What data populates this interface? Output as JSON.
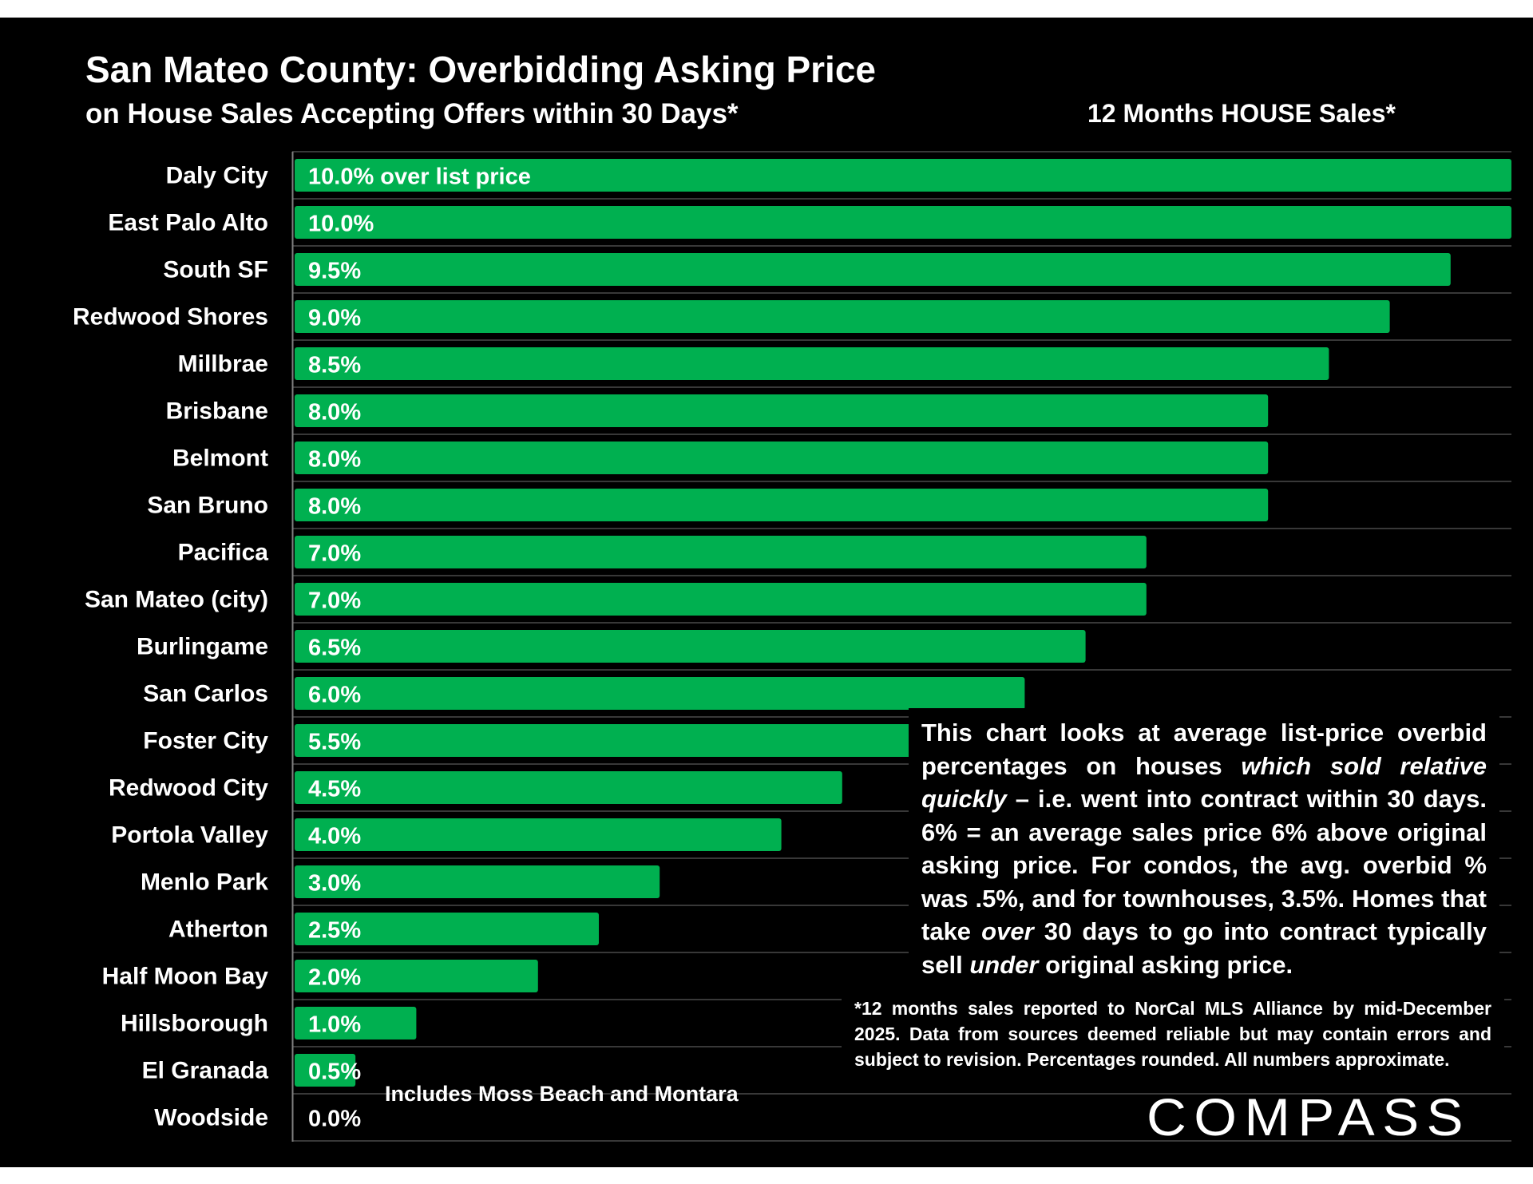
{
  "header": {
    "title": "San Mateo County: Overbidding Asking Price",
    "subtitle": "on House Sales Accepting Offers within 30 Days*",
    "caption": "12 Months HOUSE Sales*"
  },
  "chart_data": {
    "type": "bar",
    "orientation": "horizontal",
    "title": "San Mateo County: Overbidding Asking Price",
    "categories": [
      "Daly City",
      "East Palo Alto",
      "South SF",
      "Redwood Shores",
      "Millbrae",
      "Brisbane",
      "Belmont",
      "San Bruno",
      "Pacifica",
      "San Mateo (city)",
      "Burlingame",
      "San Carlos",
      "Foster City",
      "Redwood City",
      "Portola Valley",
      "Menlo Park",
      "Atherton",
      "Half Moon Bay",
      "Hillsborough",
      "El Granada",
      "Woodside"
    ],
    "values": [
      10.0,
      10.0,
      9.5,
      9.0,
      8.5,
      8.0,
      8.0,
      8.0,
      7.0,
      7.0,
      6.5,
      6.0,
      5.5,
      4.5,
      4.0,
      3.0,
      2.5,
      2.0,
      1.0,
      0.5,
      0.0
    ],
    "labels": [
      "10.0% over list price",
      "10.0%",
      "9.5%",
      "9.0%",
      "8.5%",
      "8.0%",
      "8.0%",
      "8.0%",
      "7.0%",
      "7.0%",
      "6.5%",
      "6.0%",
      "5.5%",
      "4.5%",
      "4.0%",
      "3.0%",
      "2.5%",
      "2.0%",
      "1.0%",
      "0.5%",
      "0.0%"
    ],
    "units": "% over list price",
    "xlim": [
      0,
      10
    ],
    "grid": true,
    "bar_color": "#00b050"
  },
  "annotation": "Includes Moss Beach and Montara",
  "explanation": {
    "p1": "This chart looks at average list-price overbid percentages on houses ",
    "em1": "which sold relative quickly",
    "p2": " – i.e. went into contract within 30 days. 6% = an average sales price 6% above original asking price. For condos, the avg. overbid % was .5%, and for townhouses, 3.5%. Homes that take ",
    "em2": "over",
    "p3": " 30 days to go into contract typically sell ",
    "em3": "under",
    "p4": " original asking price."
  },
  "footnote": "*12 months sales reported to NorCal MLS Alliance by mid-December 2025. Data from sources deemed reliable but may contain errors and subject to revision. Percentages rounded. All numbers approximate.",
  "logo": {
    "text": "COMPASS"
  }
}
